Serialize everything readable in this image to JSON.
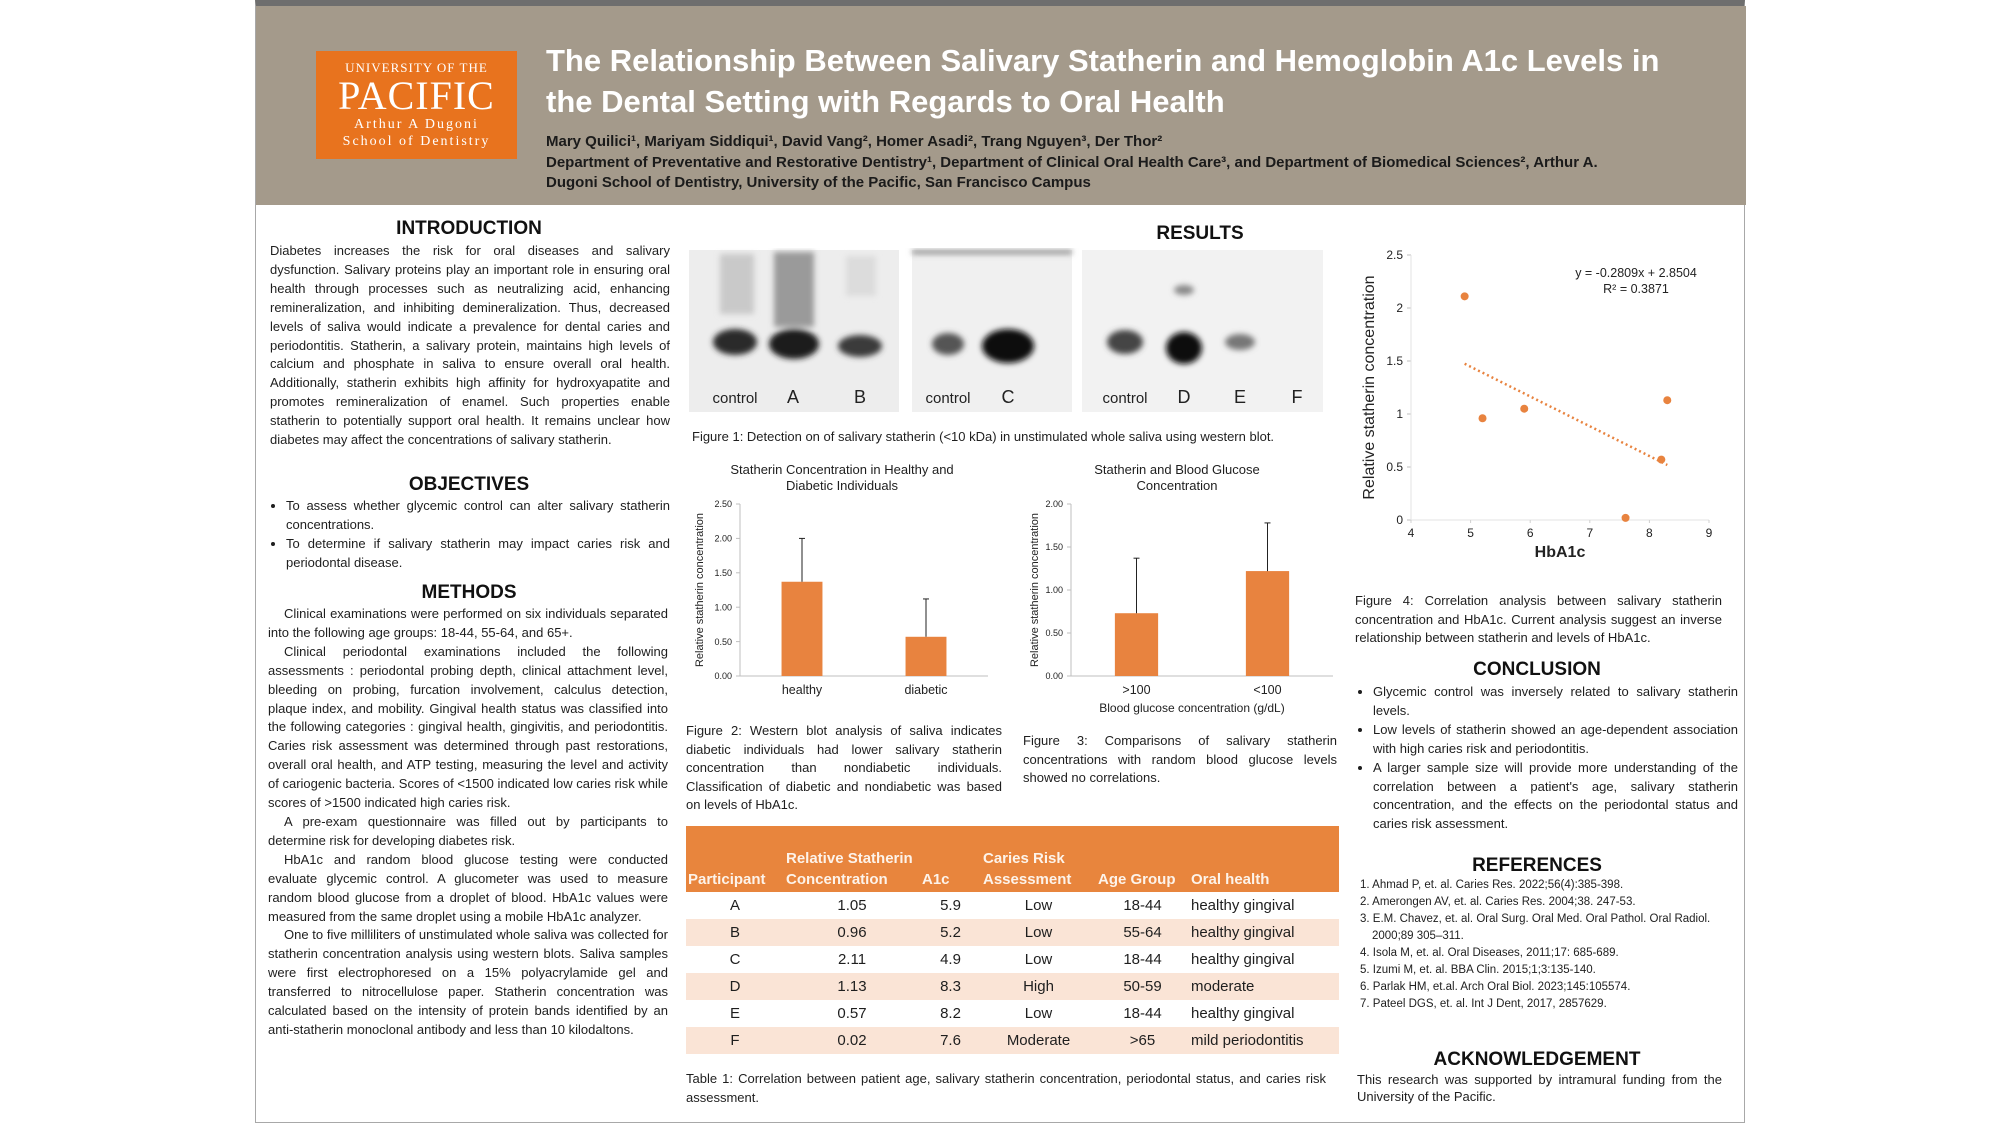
{
  "header": {
    "logo": [
      "UNIVERSITY OF THE",
      "PACIFIC",
      "Arthur A Dugoni",
      "School of Dentistry"
    ],
    "title": "The Relationship Between Salivary Statherin and Hemoglobin A1c Levels in the Dental Setting with Regards to Oral Health",
    "authors": "Mary Quilici¹, Mariyam Siddiqui¹, David Vang², Homer Asadi², Trang Nguyen³, Der Thor²",
    "affiliations": "Department of Preventative and Restorative Dentistry¹, Department of Clinical Oral Health Care³, and Department of Biomedical Sciences², Arthur A. Dugoni School of Dentistry, University of the Pacific, San Francisco Campus"
  },
  "introduction": {
    "heading": "INTRODUCTION",
    "text": "Diabetes increases the risk for oral diseases and salivary dysfunction. Salivary proteins play an important role in ensuring oral health through processes such as neutralizing acid, enhancing remineralization, and inhibiting demineralization. Thus, decreased levels of saliva would indicate a prevalence for dental caries and periodontitis. Statherin, a salivary protein, maintains high levels of calcium and phosphate in saliva to ensure overall oral health. Additionally, statherin exhibits high affinity for hydroxyapatite and promotes remineralization of enamel. Such properties enable statherin to potentially support oral health. It remains unclear how diabetes may affect the concentrations of salivary statherin."
  },
  "objectives": {
    "heading": "OBJECTIVES",
    "items": [
      "To assess whether glycemic control can alter salivary statherin concentrations.",
      "To determine if salivary statherin may impact caries risk and periodontal disease."
    ]
  },
  "methods": {
    "heading": "METHODS",
    "paragraphs": [
      "Clinical examinations were performed on six individuals separated into the following age groups: 18-44, 55-64, and 65+.",
      "Clinical periodontal examinations included the following assessments : periodontal probing depth, clinical attachment level, bleeding on probing, furcation involvement, calculus detection, plaque index, and mobility. Gingival health status was classified into the following categories : gingival health, gingivitis, and periodontitis. Caries risk assessment was determined through past restorations, overall oral health, and ATP testing, measuring the level and activity of cariogenic bacteria. Scores of <1500 indicated low caries risk while scores of >1500 indicated high caries risk.",
      "A pre-exam questionnaire was filled out by participants to determine risk for developing diabetes risk.",
      "HbA1c and random blood glucose testing were conducted evaluate glycemic control. A glucometer was used to measure random blood glucose from a droplet of blood. HbA1c values were measured from the same droplet using a mobile HbA1c analyzer.",
      "One to five milliliters of unstimulated whole saliva was collected for statherin concentration analysis using western blots. Saliva samples were first electrophoresed on a 15% polyacrylamide gel and transferred to nitrocellulose paper. Statherin concentration was calculated based on the intensity of protein bands identified by an anti-statherin monoclonal antibody and less than 10 kilodaltons."
    ]
  },
  "results": {
    "heading": "RESULTS"
  },
  "blot": {
    "panels": [
      [
        "control",
        "A",
        "B"
      ],
      [
        "control",
        "C"
      ],
      [
        "control",
        "D",
        "E",
        "F"
      ]
    ],
    "caption": "Figure 1: Detection on of salivary statherin (<10 kDa) in unstimulated whole saliva using western blot."
  },
  "figure2_caption": "Figure 2: Western blot analysis of saliva indicates diabetic individuals had lower salivary statherin concentration than nondiabetic individuals. Classification of diabetic and nondiabetic was based on levels of HbA1c.",
  "figure3_caption": "Figure 3: Comparisons of salivary statherin concentrations with random blood glucose levels showed no correlations.",
  "figure4_caption": "Figure 4: Correlation analysis between salivary statherin concentration and HbA1c. Current analysis suggest an inverse relationship between statherin and levels of HbA1c.",
  "chart_data": [
    {
      "type": "bar",
      "title": "Statherin Concentration in Healthy and Diabetic Individuals",
      "ylabel": "Relative statherin concentration",
      "categories": [
        "healthy",
        "diabetic"
      ],
      "values": [
        1.37,
        0.57
      ],
      "errors": [
        0.63,
        0.55
      ],
      "color": "#e8833f",
      "ylim": [
        0,
        2.5
      ],
      "yticks": [
        {
          "value": 0,
          "label": "0.00"
        },
        {
          "value": 0.5,
          "label": "0.50"
        },
        {
          "value": 1,
          "label": "1.00"
        },
        {
          "value": 1.5,
          "label": "1.50"
        },
        {
          "value": 2,
          "label": "2.00"
        },
        {
          "value": 2.5,
          "label": "2.50"
        }
      ],
      "grid": false
    },
    {
      "type": "bar",
      "title": "Statherin and Blood Glucose Concentration",
      "ylabel": "Relative statherin concentration",
      "xlabel": "Blood glucose concentration (g/dL)",
      "categories": [
        ">100",
        "<100"
      ],
      "values": [
        0.73,
        1.22
      ],
      "errors": [
        0.64,
        0.56
      ],
      "color": "#e8833f",
      "ylim": [
        0,
        2
      ],
      "yticks": [
        {
          "value": 0,
          "label": "0.00"
        },
        {
          "value": 0.5,
          "label": "0.50"
        },
        {
          "value": 1,
          "label": "1.00"
        },
        {
          "value": 1.5,
          "label": "1.50"
        },
        {
          "value": 2,
          "label": "2.00"
        }
      ],
      "grid": false
    },
    {
      "type": "scatter",
      "xlabel": "HbA1c",
      "ylabel": "Relative statherin concentration",
      "x": [
        5.9,
        5.2,
        4.9,
        8.3,
        8.2,
        7.6
      ],
      "y": [
        1.05,
        0.96,
        2.11,
        1.13,
        0.57,
        0.02
      ],
      "color": "#e8833f",
      "trendline": true,
      "annotations": [
        "y = -0.2809x + 2.8504",
        "R² = 0.3871"
      ],
      "xlim": [
        4,
        9
      ],
      "xticks": [
        4,
        5,
        6,
        7,
        8,
        9
      ],
      "ylim": [
        0,
        2.5
      ],
      "yticks": [
        0,
        0.5,
        1,
        1.5,
        2,
        2.5
      ],
      "grid": false
    }
  ],
  "table": {
    "columns": [
      "Participant",
      "Relative Statherin Concentration",
      "A1c",
      "Caries Risk Assessment",
      "Age Group",
      "Oral health"
    ],
    "rows": [
      [
        "A",
        "1.05",
        "5.9",
        "Low",
        "18-44",
        "healthy gingival"
      ],
      [
        "B",
        "0.96",
        "5.2",
        "Low",
        "55-64",
        "healthy gingival"
      ],
      [
        "C",
        "2.11",
        "4.9",
        "Low",
        "18-44",
        "healthy gingival"
      ],
      [
        "D",
        "1.13",
        "8.3",
        "High",
        "50-59",
        "moderate"
      ],
      [
        "E",
        "0.57",
        "8.2",
        "Low",
        "18-44",
        "healthy gingival"
      ],
      [
        "F",
        "0.02",
        "7.6",
        "Moderate",
        ">65",
        "mild periodontitis"
      ]
    ],
    "caption": "Table 1: Correlation between patient age, salivary statherin concentration, periodontal status, and caries risk assessment."
  },
  "conclusion": {
    "heading": "CONCLUSION",
    "items": [
      "Glycemic control was inversely related to salivary statherin levels.",
      "Low levels of statherin showed an age-dependent association with high caries risk and periodontitis.",
      "A larger sample size will provide more understanding of the correlation between a patient's age, salivary statherin concentration, and the effects on the periodontal status and caries risk assessment."
    ]
  },
  "references": {
    "heading": "REFERENCES",
    "items": [
      "1. Ahmad P, et. al. Caries Res. 2022;56(4):385-398.",
      "2. Amerongen AV, et. al. Caries Res. 2004;38. 247-53.",
      "3. E.M. Chavez, et. al. Oral Surg. Oral Med. Oral Pathol. Oral Radiol. 2000;89 305–311.",
      "4. Isola M, et. al. Oral Diseases, 2011;17: 685-689.",
      "5. Izumi M, et. al. BBA Clin. 2015;1;3:135-140.",
      "6. Parlak HM, et.al. Arch Oral Biol. 2023;145:105574.",
      "7. Pateel DGS, et. al. Int J Dent, 2017, 2857629."
    ]
  },
  "acknowledgement": {
    "heading": "ACKNOWLEDGEMENT",
    "text": "This research was supported by intramural funding from the University of the Pacific."
  }
}
